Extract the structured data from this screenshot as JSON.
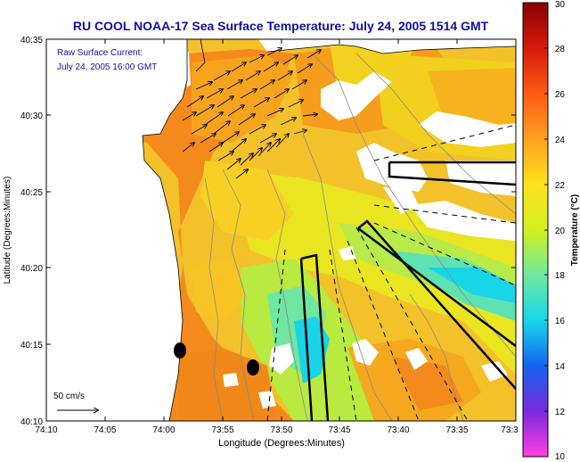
{
  "title": "RU COOL  NOAA-17  Sea Surface Temperature:  July 24, 2005 1514 GMT",
  "current_label_line1": "Raw Surface Current:",
  "current_label_line2": "July 24, 2005 16:00 GMT",
  "scale_label": "50 cm/s",
  "xlabel": "Longitude (Degrees:Minutes)",
  "ylabel": "Latitude (Degrees:Minutes)",
  "colorbar_label": "Temperature (°C)",
  "x_ticks": [
    "74:10",
    "74:05",
    "74:00",
    "73:55",
    "73:50",
    "73:45",
    "73:40",
    "73:35",
    "73:3"
  ],
  "y_ticks": [
    "40:35",
    "40:30",
    "40:25",
    "40:20",
    "40:15",
    "40:10"
  ],
  "colorbar_ticks": [
    "30",
    "28",
    "26",
    "24",
    "22",
    "20",
    "18",
    "16",
    "14",
    "12",
    "10"
  ],
  "colors": {
    "title": "#1010a0",
    "current_label": "#1010a0",
    "land": "#ffffff",
    "cloud": "#ffffff"
  }
}
